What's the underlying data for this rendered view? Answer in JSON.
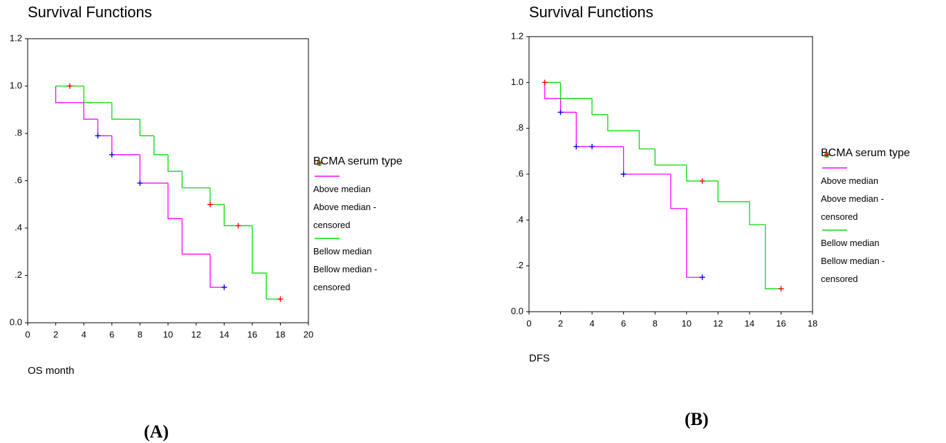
{
  "chart_data": [
    {
      "type": "step",
      "title": "Survival Functions",
      "x_label": "OS month",
      "legend_title": "BCMA serum type",
      "panel_label": "(A)",
      "xlim": [
        0,
        20
      ],
      "xticks": [
        0,
        2,
        4,
        6,
        8,
        10,
        12,
        14,
        16,
        18,
        20
      ],
      "ylim": [
        0,
        1.2
      ],
      "yticks": [
        {
          "value": 0,
          "label": "0.0"
        },
        {
          "value": 0.2,
          "label": ".2"
        },
        {
          "value": 0.4,
          "label": ".4"
        },
        {
          "value": 0.6,
          "label": ".6"
        },
        {
          "value": 0.8,
          "label": ".8"
        },
        {
          "value": 1.0,
          "label": "1.0"
        },
        {
          "value": 1.2,
          "label": "1.2"
        }
      ],
      "legend": "right",
      "series": [
        {
          "name": "Above median",
          "style": "step",
          "color": "#ff00ff",
          "x": [
            2,
            2,
            4,
            5,
            6,
            8,
            10,
            11,
            13,
            14
          ],
          "values": [
            1.0,
            0.93,
            0.86,
            0.79,
            0.71,
            0.59,
            0.44,
            0.29,
            0.15,
            0.15
          ]
        },
        {
          "name": "Above median -censored",
          "style": "censored",
          "color": "#0000ff",
          "x": [
            5,
            6,
            8,
            14
          ],
          "values": [
            0.79,
            0.71,
            0.59,
            0.15
          ]
        },
        {
          "name": "Bellow median",
          "style": "step",
          "color": "#00dd00",
          "x": [
            2,
            4,
            6,
            8,
            9,
            10,
            11,
            13,
            14,
            16,
            17,
            18
          ],
          "values": [
            1.0,
            0.93,
            0.86,
            0.79,
            0.71,
            0.64,
            0.57,
            0.5,
            0.41,
            0.21,
            0.1,
            0.1
          ]
        },
        {
          "name": "Bellow median -censored",
          "style": "censored",
          "color": "#ff0000",
          "x": [
            3,
            13,
            15,
            18
          ],
          "values": [
            1.0,
            0.5,
            0.41,
            0.1
          ]
        }
      ]
    },
    {
      "type": "step",
      "title": "Survival Functions",
      "x_label": "DFS",
      "legend_title": "BCMA serum type",
      "panel_label": "(B)",
      "xlim": [
        0,
        18
      ],
      "xticks": [
        0,
        2,
        4,
        6,
        8,
        10,
        12,
        14,
        16,
        18
      ],
      "ylim": [
        0,
        1.2
      ],
      "yticks": [
        {
          "value": 0,
          "label": "0.0"
        },
        {
          "value": 0.2,
          "label": ".2"
        },
        {
          "value": 0.4,
          "label": ".4"
        },
        {
          "value": 0.6,
          "label": ".6"
        },
        {
          "value": 0.8,
          "label": ".8"
        },
        {
          "value": 1.0,
          "label": "1.0"
        },
        {
          "value": 1.2,
          "label": "1.2"
        }
      ],
      "legend": "right",
      "series": [
        {
          "name": "Above median",
          "style": "step",
          "color": "#ff00ff",
          "x": [
            1,
            1,
            2,
            3,
            6,
            9,
            10,
            11
          ],
          "values": [
            1.0,
            0.93,
            0.87,
            0.72,
            0.6,
            0.45,
            0.15,
            0.15
          ]
        },
        {
          "name": "Above median -censored",
          "style": "censored",
          "color": "#0000ff",
          "x": [
            2,
            3,
            4,
            6,
            11
          ],
          "values": [
            0.87,
            0.72,
            0.72,
            0.6,
            0.15
          ]
        },
        {
          "name": "Bellow median",
          "style": "step",
          "color": "#00dd00",
          "x": [
            1,
            2,
            4,
            5,
            7,
            8,
            10,
            12,
            14,
            15,
            16
          ],
          "values": [
            1.0,
            0.93,
            0.86,
            0.79,
            0.71,
            0.64,
            0.57,
            0.48,
            0.38,
            0.1,
            0.1
          ]
        },
        {
          "name": "Bellow median -censored",
          "style": "censored",
          "color": "#ff0000",
          "x": [
            1,
            11,
            16
          ],
          "values": [
            1.0,
            0.57,
            0.1
          ]
        }
      ]
    }
  ]
}
